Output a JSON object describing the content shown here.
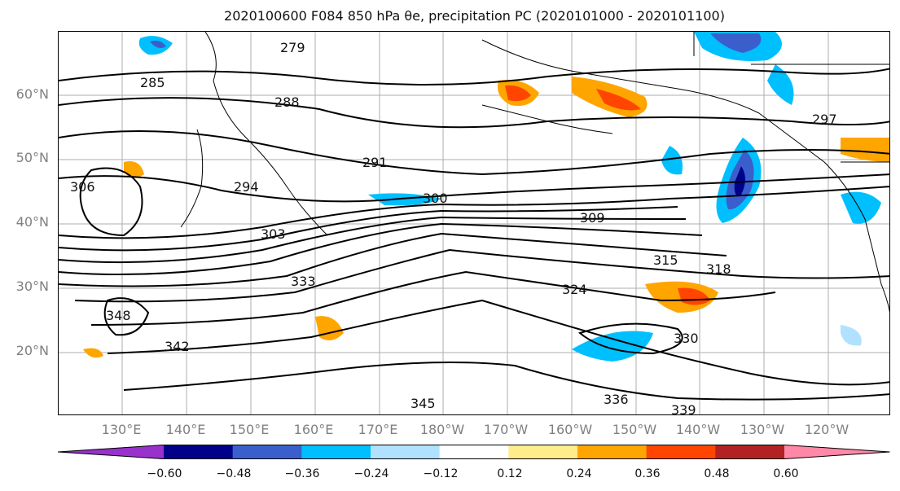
{
  "title": "2020100600 F084 850 hPa θe, precipitation PC (2020101000 - 2020101100)",
  "lat_labels": [
    "60°N",
    "50°N",
    "40°N",
    "30°N",
    "20°N"
  ],
  "lon_labels": [
    "130°E",
    "140°E",
    "150°E",
    "160°E",
    "170°E",
    "180°W",
    "170°W",
    "160°W",
    "150°W",
    "140°W",
    "130°W",
    "120°W"
  ],
  "contour_labels": [
    "279",
    "285",
    "288",
    "291",
    "294",
    "297",
    "300",
    "303",
    "306",
    "309",
    "315",
    "318",
    "324",
    "330",
    "333",
    "336",
    "339",
    "342",
    "345",
    "348"
  ],
  "colorbar": {
    "colors": [
      "#9932CC",
      "#00008B",
      "#3A5FCD",
      "#00BFFF",
      "#B0E2FF",
      "#FFFFFF",
      "#FFEC8B",
      "#FFA500",
      "#FF4500",
      "#B22222",
      "#FF88A8"
    ],
    "tick_labels": [
      "−0.60",
      "−0.48",
      "−0.36",
      "−0.24",
      "−0.12",
      "0.12",
      "0.24",
      "0.36",
      "0.48",
      "0.60"
    ]
  }
}
